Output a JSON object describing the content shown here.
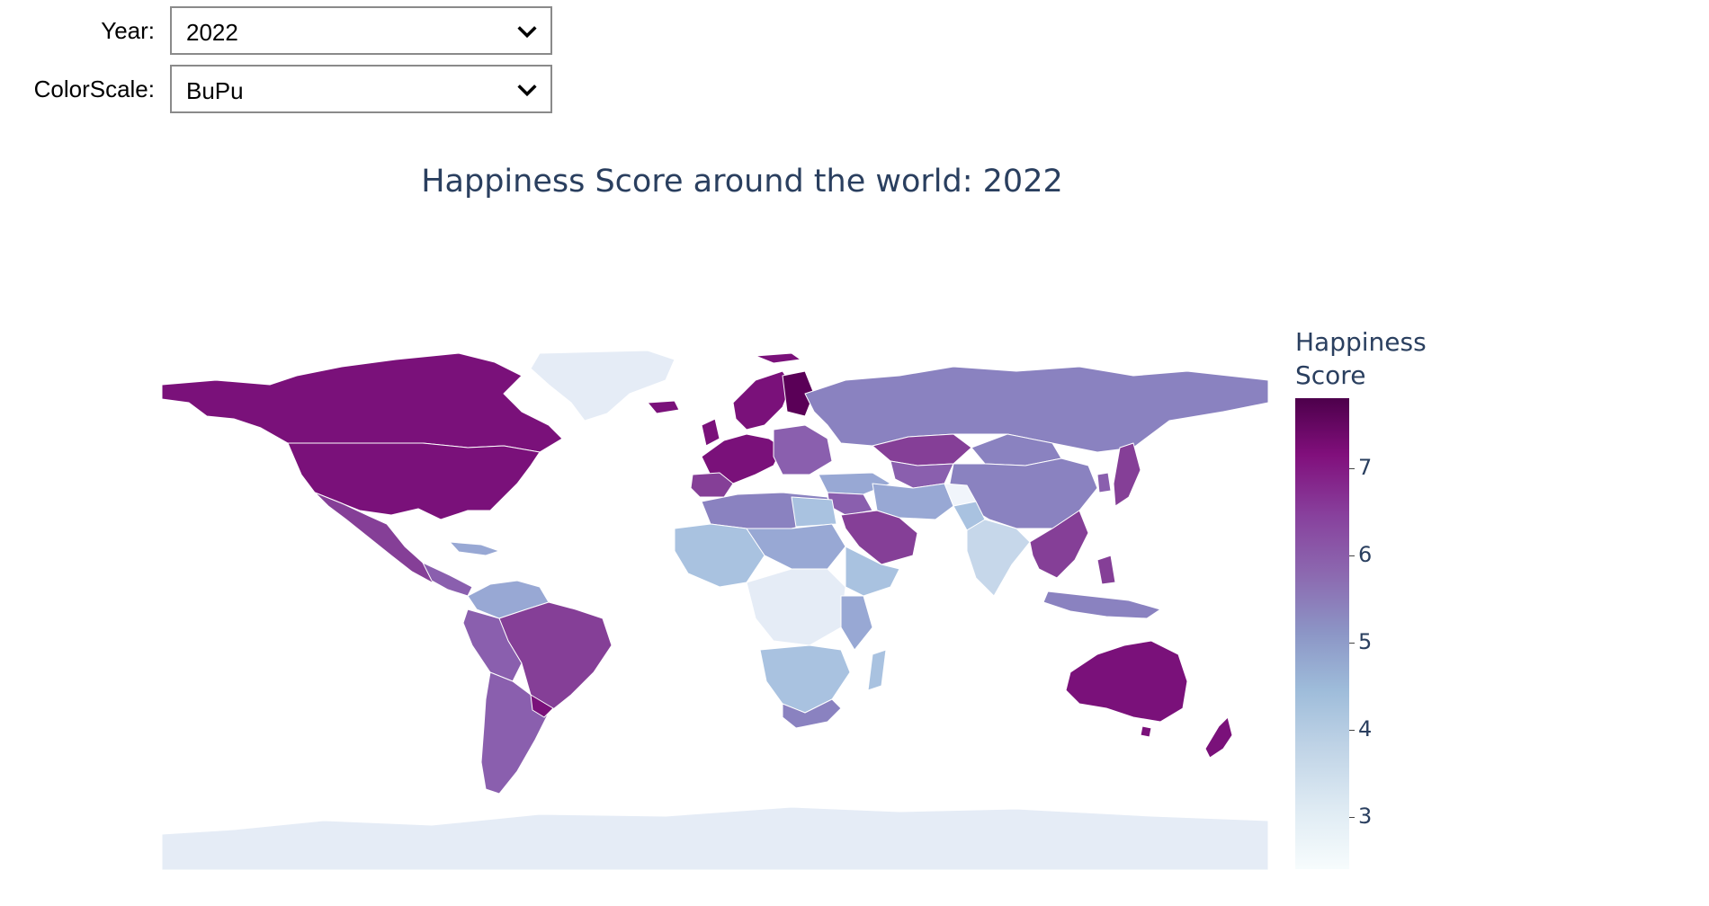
{
  "controls": {
    "year": {
      "label": "Year:",
      "value": "2022"
    },
    "colorscale": {
      "label": "ColorScale:",
      "value": "BuPu"
    }
  },
  "chart_data": {
    "type": "choropleth",
    "title": "Happiness Score around the world: 2022",
    "colorbar": {
      "title_line1": "Happiness",
      "title_line2": "Score",
      "ticks": [
        "7",
        "6",
        "5",
        "4",
        "3"
      ],
      "range": [
        2.4,
        7.8
      ]
    },
    "colorscale": "BuPu",
    "colors": {
      "score_7_5": "#5a0057",
      "score_7": "#7a117a",
      "score_6_5": "#853f97",
      "score_6": "#8a5fae",
      "score_5_5": "#8a82c0",
      "score_5": "#98a8d4",
      "score_4_5": "#a9c2e0",
      "score_4": "#c6d7ea",
      "score_3": "#e5ecf6",
      "no_data": "#e5ecf6"
    }
  }
}
